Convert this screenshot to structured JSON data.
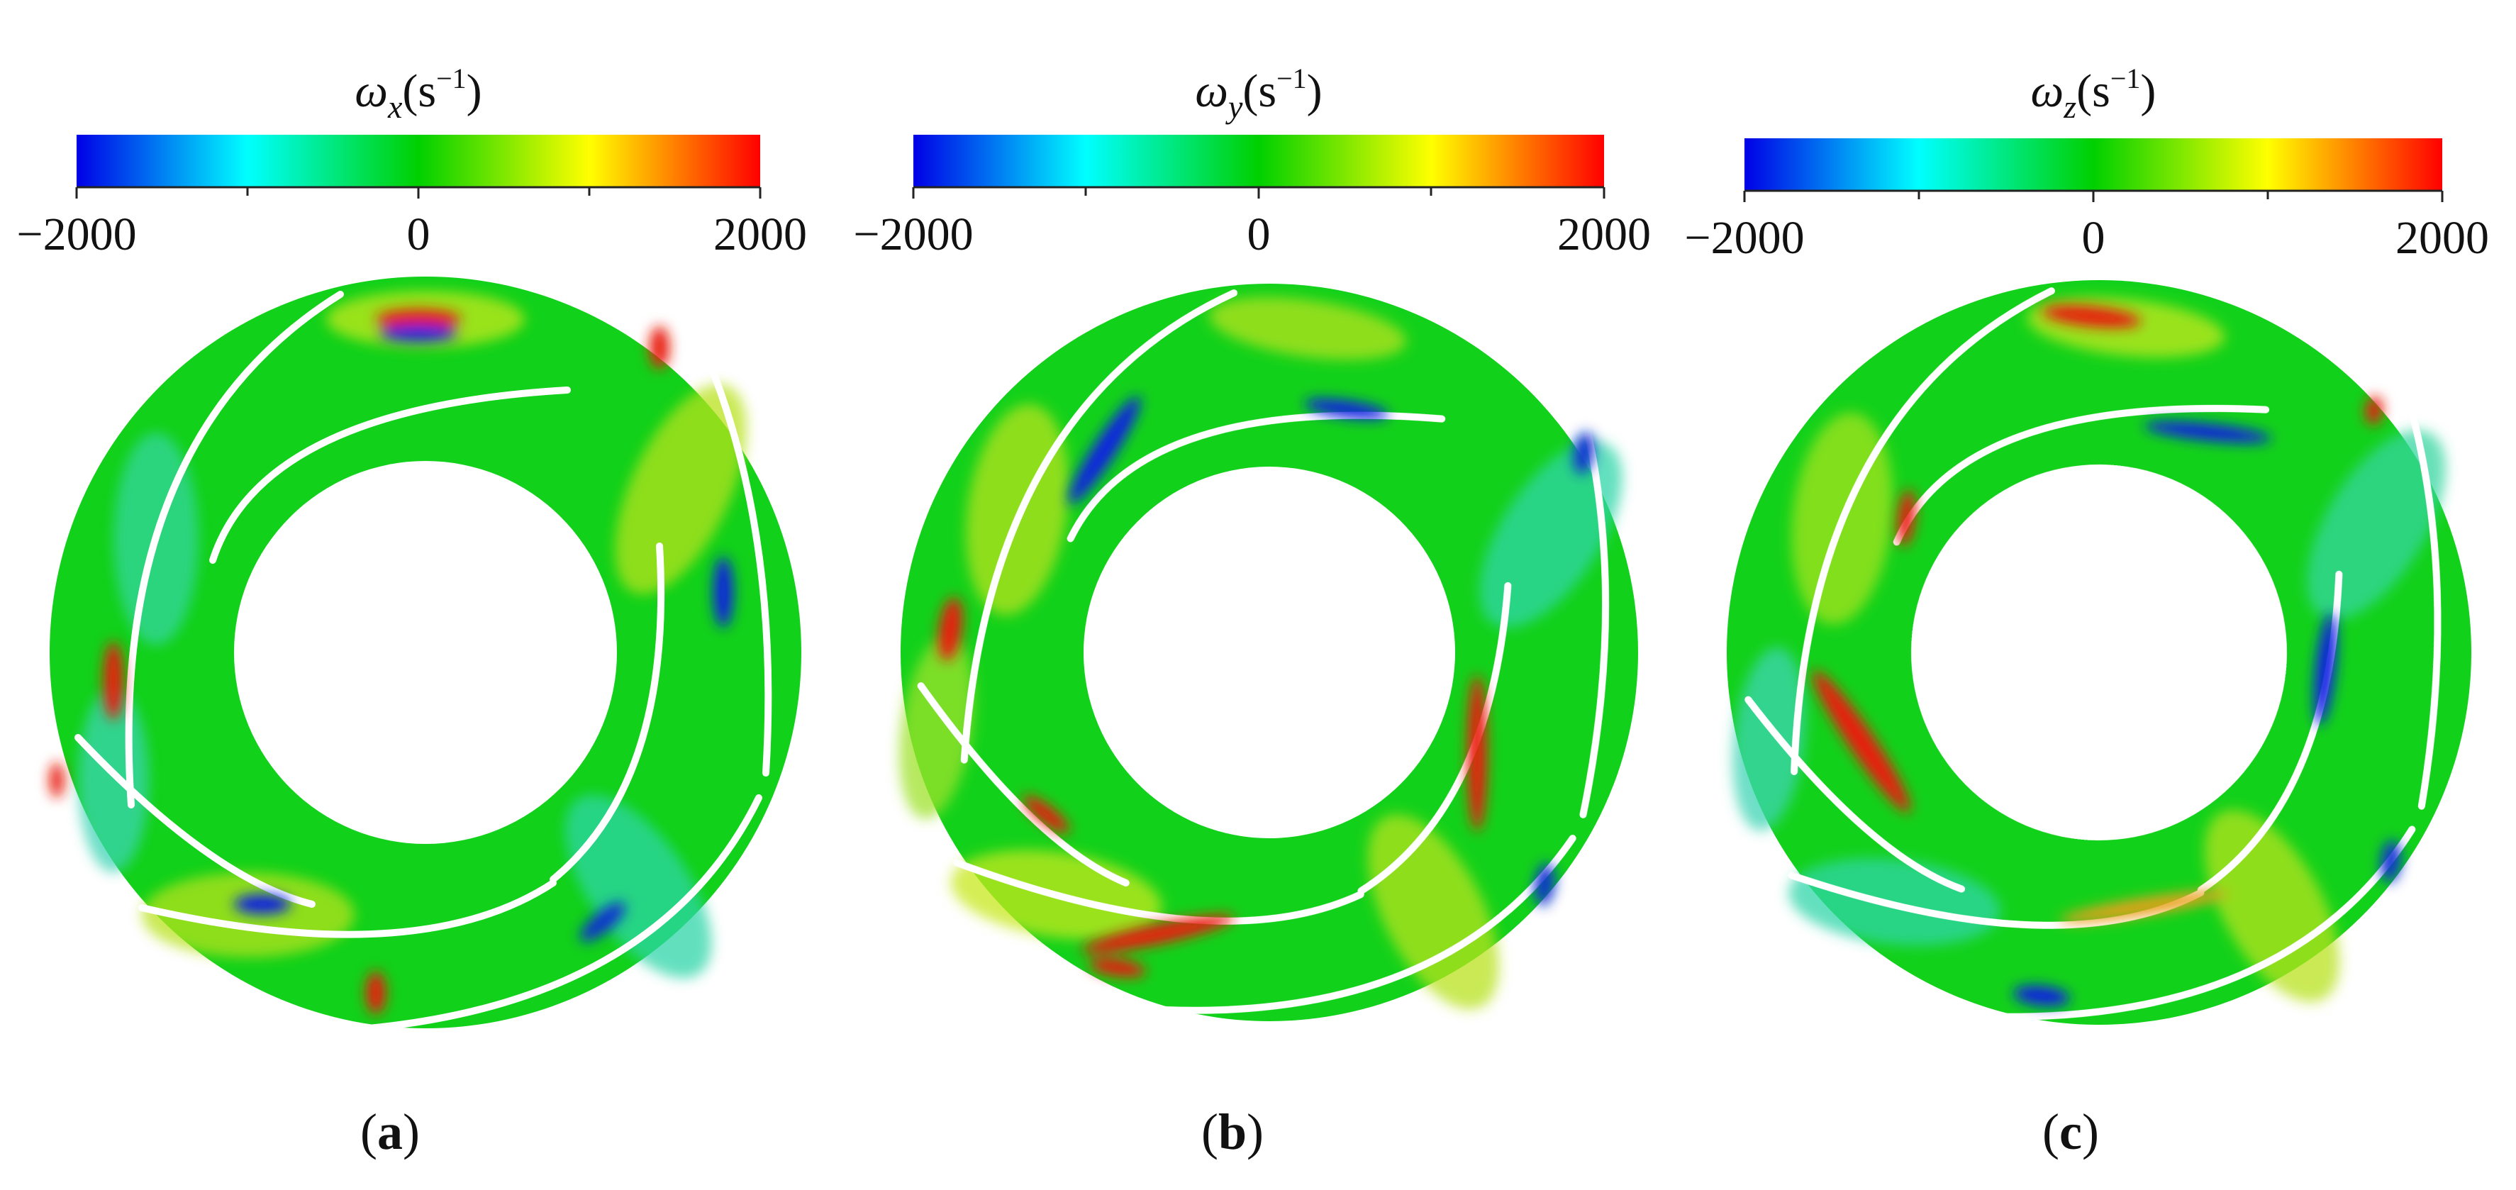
{
  "colormap": {
    "stops": [
      "#0000e6",
      "#00ffff",
      "#00d000",
      "#ffff00",
      "#ff0000"
    ],
    "background": "#12d11a"
  },
  "panels": [
    {
      "id": "a",
      "label_open": "(",
      "label_letter": "a",
      "label_close": ")",
      "colorbar": {
        "symbol": "ω",
        "subscript": "x",
        "unit_open": "(s",
        "unit_exp": "−1",
        "unit_close": ")",
        "ticks": [
          "−2000",
          "0",
          "2000"
        ]
      }
    },
    {
      "id": "b",
      "label_open": "(",
      "label_letter": "b",
      "label_close": ")",
      "colorbar": {
        "symbol": "ω",
        "subscript": "y",
        "unit_open": "(s",
        "unit_exp": "−1",
        "unit_close": ")",
        "ticks": [
          "−2000",
          "0",
          "2000"
        ]
      }
    },
    {
      "id": "c",
      "label_open": "(",
      "label_letter": "c",
      "label_close": ")",
      "colorbar": {
        "symbol": "ω",
        "subscript": "z",
        "unit_open": "(s",
        "unit_exp": "−1",
        "unit_close": ")",
        "ticks": [
          "−2000",
          "0",
          "2000"
        ]
      }
    }
  ]
}
